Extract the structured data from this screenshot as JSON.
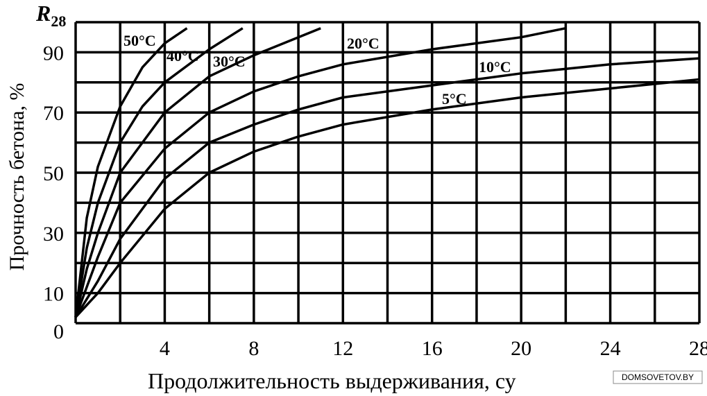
{
  "chart_data": {
    "type": "line",
    "y_unit_label": {
      "main": "R",
      "sub": "28"
    },
    "y_label": "Прочность бетона, %",
    "x_label": "Продолжительность выдерживания, су",
    "watermark": "DOMSOVETOV.BY",
    "xlim": [
      0,
      28
    ],
    "ylim": [
      0,
      100
    ],
    "xticks": [
      4,
      8,
      12,
      16,
      20,
      24,
      28
    ],
    "yticks": [
      0,
      10,
      30,
      50,
      70,
      90
    ],
    "x_grid_lines": [
      0,
      2,
      4,
      6,
      8,
      10,
      12,
      14,
      16,
      18,
      20,
      22,
      24,
      26,
      28
    ],
    "y_grid_lines": [
      0,
      10,
      20,
      30,
      40,
      50,
      60,
      70,
      80,
      90,
      100
    ],
    "grid": true,
    "series": [
      {
        "name": "50°C",
        "color": "#000000",
        "x": [
          0,
          0.5,
          1,
          2,
          3,
          4,
          5
        ],
        "values": [
          2,
          35,
          52,
          72,
          85,
          93,
          98
        ]
      },
      {
        "name": "40°C",
        "color": "#000000",
        "x": [
          0,
          0.5,
          1,
          2,
          3,
          4,
          6,
          7.5
        ],
        "values": [
          2,
          25,
          40,
          60,
          72,
          80,
          91,
          98
        ]
      },
      {
        "name": "30°C",
        "color": "#000000",
        "x": [
          0,
          0.5,
          1,
          2,
          4,
          6,
          8,
          10,
          11
        ],
        "values": [
          2,
          18,
          30,
          50,
          70,
          82,
          89,
          95,
          98
        ]
      },
      {
        "name": "20°C",
        "color": "#000000",
        "x": [
          0,
          1,
          2,
          4,
          6,
          8,
          10,
          12,
          16,
          20,
          22
        ],
        "values": [
          2,
          22,
          40,
          58,
          70,
          77,
          82,
          86,
          91,
          95,
          98
        ]
      },
      {
        "name": "10°C",
        "color": "#000000",
        "x": [
          0,
          1,
          2,
          4,
          6,
          8,
          10,
          12,
          16,
          20,
          24,
          28
        ],
        "values": [
          2,
          14,
          28,
          48,
          60,
          66,
          71,
          75,
          79,
          83,
          86,
          88
        ]
      },
      {
        "name": "5°C",
        "color": "#000000",
        "x": [
          0,
          1,
          2,
          4,
          6,
          8,
          10,
          12,
          16,
          20,
          24,
          28
        ],
        "values": [
          2,
          10,
          20,
          38,
          50,
          57,
          62,
          66,
          71,
          75,
          78,
          81
        ]
      }
    ]
  }
}
